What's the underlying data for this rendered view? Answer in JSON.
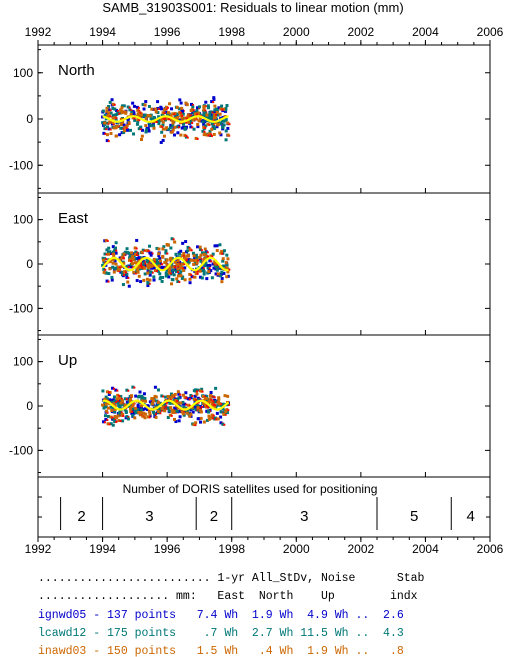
{
  "title": "SAMB_31903S001: Residuals to linear motion (mm)",
  "colors": {
    "ignwd05": "#0000cc",
    "lcawd12": "#007777",
    "inawd03": "#cc6600",
    "mean": "#ffff00",
    "accent_red": "#ff0000"
  },
  "chart_data": [
    {
      "type": "scatter",
      "panel_label": "North",
      "xlim": [
        1992,
        2006
      ],
      "ylim": [
        -160,
        160
      ],
      "x_ticks": [
        "1992",
        "1994",
        "1996",
        "1998",
        "2000",
        "2002",
        "2004",
        "2006"
      ],
      "y_ticks": [
        "100",
        "0",
        "-100"
      ],
      "data_span": [
        1994.0,
        1997.9
      ],
      "spread": 75,
      "mean_curve": {
        "amplitude": 6,
        "period": 1.0,
        "phase": 0.3
      },
      "series": [
        {
          "name": "ignwd05",
          "count": 137,
          "color": "#0000cc"
        },
        {
          "name": "lcawd12",
          "count": 175,
          "color": "#007777"
        },
        {
          "name": "inawd03",
          "count": 150,
          "color": "#cc6600"
        }
      ]
    },
    {
      "type": "scatter",
      "panel_label": "East",
      "xlim": [
        1992,
        2006
      ],
      "ylim": [
        -160,
        160
      ],
      "x_ticks": [
        "1992",
        "1994",
        "1996",
        "1998",
        "2000",
        "2002",
        "2004",
        "2006"
      ],
      "y_ticks": [
        "100",
        "0",
        "-100"
      ],
      "data_span": [
        1994.0,
        1997.9
      ],
      "spread": 90,
      "mean_curve": {
        "amplitude": 14,
        "period": 1.0,
        "phase": 0.9
      },
      "series": [
        {
          "name": "ignwd05",
          "count": 137,
          "color": "#0000cc"
        },
        {
          "name": "lcawd12",
          "count": 175,
          "color": "#007777"
        },
        {
          "name": "inawd03",
          "count": 150,
          "color": "#cc6600"
        }
      ]
    },
    {
      "type": "scatter",
      "panel_label": "Up",
      "xlim": [
        1992,
        2006
      ],
      "ylim": [
        -160,
        160
      ],
      "x_ticks": [
        "1992",
        "1994",
        "1996",
        "1998",
        "2000",
        "2002",
        "2004",
        "2006"
      ],
      "y_ticks": [
        "100",
        "0",
        "-100"
      ],
      "data_span": [
        1994.0,
        1997.9
      ],
      "spread": 80,
      "mean_curve": {
        "amplitude": 10,
        "period": 1.0,
        "phase": 0.2,
        "offset": 2
      },
      "series": [
        {
          "name": "ignwd05",
          "count": 137,
          "color": "#0000cc"
        },
        {
          "name": "lcawd12",
          "count": 175,
          "color": "#007777"
        },
        {
          "name": "inawd03",
          "count": 150,
          "color": "#cc6600"
        }
      ]
    },
    {
      "type": "table",
      "caption": "Number of DORIS satellites used for positioning",
      "dividers": [
        1992.7,
        1994.0,
        1996.9,
        1998.0,
        2002.5,
        2004.8
      ],
      "segments": [
        {
          "label": "2",
          "from": 1992.7,
          "to": 1994.0
        },
        {
          "label": "3",
          "from": 1994.0,
          "to": 1996.9
        },
        {
          "label": "2",
          "from": 1996.9,
          "to": 1998.0
        },
        {
          "label": "3",
          "from": 1998.0,
          "to": 2002.5
        },
        {
          "label": "5",
          "from": 2002.5,
          "to": 2004.8
        },
        {
          "label": "4",
          "from": 2004.8,
          "to": 2006.0
        }
      ]
    }
  ],
  "stats": {
    "header1": "......................... 1-yr All_StDv, Noise      Stab",
    "header2": "................... mm:   East  North    Up        indx",
    "rows": [
      {
        "text": "ignwd05 - 137 points   7.4 Wh  1.9 Wh  4.9 Wh ..  2.6",
        "color": "#0000cc"
      },
      {
        "text": "lcawd12 - 175 points    .7 Wh  2.7 Wh 11.5 Wh ..  4.3",
        "color": "#007777"
      },
      {
        "text": "inawd03 - 150 points   1.5 Wh   .4 Wh  1.9 Wh ..   .8",
        "color": "#cc6600"
      }
    ]
  }
}
